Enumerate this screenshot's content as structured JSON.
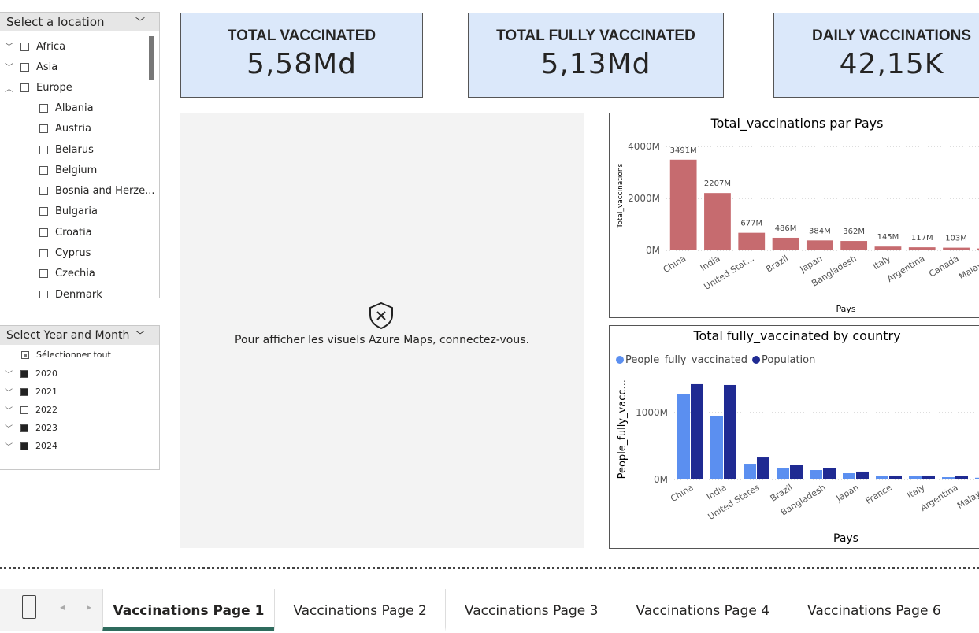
{
  "location_slicer": {
    "title": "Select a location",
    "groups": [
      "Africa",
      "Asia"
    ],
    "expanded_group": "Europe",
    "children": [
      "Albania",
      "Austria",
      "Belarus",
      "Belgium",
      "Bosnia and Herze...",
      "Bulgaria",
      "Croatia",
      "Cyprus",
      "Czechia",
      "Denmark"
    ]
  },
  "period_slicer": {
    "title": "Select Year and Month",
    "select_all": "Sélectionner tout",
    "years": [
      "2020",
      "2021",
      "2022",
      "2023",
      "2024"
    ],
    "checked": [
      true,
      true,
      false,
      true,
      true
    ]
  },
  "cards": [
    {
      "label": "TOTAL VACCINATED",
      "value": "5,58Md"
    },
    {
      "label": "TOTAL FULLY VACCINATED",
      "value": "5,13Md"
    },
    {
      "label": "DAILY VACCINATIONS",
      "value": "42,15K"
    }
  ],
  "map": {
    "message": "Pour afficher les visuels Azure Maps, connectez-vous."
  },
  "charts": [
    {
      "type": "bar",
      "title": "Total_vaccinations par Pays",
      "y_label": "Total_vaccinations",
      "x_label": "Pays",
      "color": "#c66b6f",
      "categories": [
        "China",
        "India",
        "United Stat...",
        "Brazil",
        "Japan",
        "Bangladesh",
        "Italy",
        "Argentina",
        "Canada",
        "Malaysia"
      ],
      "values": [
        3491,
        2207,
        677,
        486,
        384,
        362,
        145,
        117,
        103,
        72
      ],
      "value_labels": [
        "3491M",
        "2207M",
        "677M",
        "486M",
        "384M",
        "362M",
        "145M",
        "117M",
        "103M",
        null
      ],
      "ylim": [
        0,
        4200
      ],
      "yticks": [
        {
          "value": 0,
          "label": "0M"
        },
        {
          "value": 2000,
          "label": "2000M"
        },
        {
          "value": 4000,
          "label": "4000M"
        }
      ],
      "grid": true
    },
    {
      "type": "grouped-bar",
      "title": "Total fully_vaccinated by country",
      "y_label": "People_fully_vacc...",
      "x_label": "Pays",
      "categories": [
        "China",
        "India",
        "United States",
        "Brazil",
        "Bangladesh",
        "Japan",
        "France",
        "Italy",
        "Argentina",
        "Malaysia"
      ],
      "series": [
        {
          "name": "People_fully_vaccinated",
          "color": "#5b8ff0",
          "values": [
            1282,
            953,
            235,
            176,
            141,
            94,
            47,
            47,
            35,
            26
          ]
        },
        {
          "name": "Population",
          "color": "#1f2a92",
          "values": [
            1424,
            1412,
            329,
            212,
            165,
            118,
            59,
            59,
            47,
            33
          ]
        }
      ],
      "ylim": [
        0,
        1500
      ],
      "yticks": [
        {
          "value": 0,
          "label": "0M"
        },
        {
          "value": 1000,
          "label": "1000M"
        }
      ],
      "grid": true
    }
  ],
  "tabs": [
    "Vaccinations Page 1",
    "Vaccinations Page 2",
    "Vaccinations Page 3",
    "Vaccinations Page 4",
    "Vaccinations Page 6"
  ],
  "active_tab": 0
}
